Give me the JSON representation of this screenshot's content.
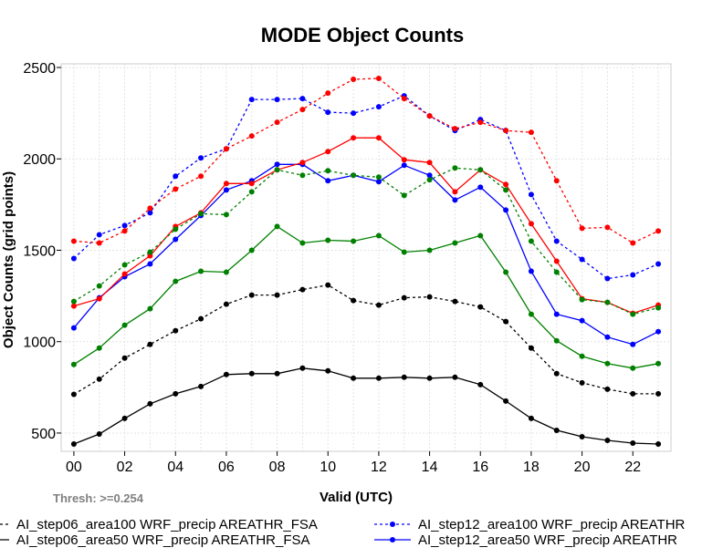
{
  "chart_data": {
    "type": "line",
    "title": "MODE Object Counts",
    "xlabel": "Valid (UTC)",
    "ylabel": "Object Counts (grid points)",
    "note": "Thresh: >=0.254",
    "x": [
      0,
      1,
      2,
      3,
      4,
      5,
      6,
      7,
      8,
      9,
      10,
      11,
      12,
      13,
      14,
      15,
      16,
      17,
      18,
      19,
      20,
      21,
      22,
      23
    ],
    "xticks": [
      0,
      2,
      4,
      6,
      8,
      10,
      12,
      14,
      16,
      18,
      20,
      22
    ],
    "xtick_labels": [
      "00",
      "02",
      "04",
      "06",
      "08",
      "10",
      "12",
      "14",
      "16",
      "18",
      "20",
      "22"
    ],
    "yticks": [
      500,
      1000,
      1500,
      2000,
      2500
    ],
    "xlim": [
      -0.5,
      23.5
    ],
    "ylim": [
      400,
      2520
    ],
    "grid": true,
    "series": [
      {
        "name": "AI_step06_area100 WRF_precip AREATHR_FSA",
        "color": "#000000",
        "dash": "3,3",
        "values": [
          712,
          795,
          910,
          985,
          1060,
          1125,
          1205,
          1255,
          1255,
          1285,
          1310,
          1225,
          1200,
          1240,
          1245,
          1220,
          1190,
          1110,
          965,
          825,
          775,
          740,
          715,
          715
        ]
      },
      {
        "name": "AI_step06_area50 WRF_precip AREATHR_FSA",
        "color": "#000000",
        "dash": "",
        "values": [
          440,
          495,
          580,
          660,
          715,
          755,
          820,
          825,
          825,
          855,
          840,
          800,
          800,
          805,
          800,
          805,
          765,
          675,
          580,
          515,
          480,
          460,
          445,
          440
        ]
      },
      {
        "name": "AI_step12_area100 WRF_precip AREATHR_FSA",
        "color": "#0000ff",
        "dash": "3,3",
        "values": [
          1455,
          1585,
          1635,
          1705,
          1905,
          2005,
          2055,
          2325,
          2325,
          2330,
          2255,
          2250,
          2285,
          2345,
          2235,
          2155,
          2215,
          2155,
          1805,
          1550,
          1450,
          1345,
          1365,
          1425
        ]
      },
      {
        "name": "AI_step12_area50 WRF_precip AREATHR_FSA",
        "color": "#0000ff",
        "dash": "",
        "values": [
          1075,
          1240,
          1355,
          1425,
          1560,
          1690,
          1830,
          1880,
          1970,
          1970,
          1880,
          1910,
          1875,
          1965,
          1910,
          1775,
          1845,
          1720,
          1385,
          1150,
          1115,
          1025,
          985,
          1055
        ]
      },
      {
        "name": "red dashed series",
        "color": "#ff0000",
        "dash": "3,3",
        "values": [
          1550,
          1540,
          1605,
          1730,
          1835,
          1905,
          2055,
          2125,
          2200,
          2270,
          2360,
          2435,
          2440,
          2330,
          2235,
          2165,
          2200,
          2155,
          2145,
          1880,
          1620,
          1625,
          1540,
          1605
        ]
      },
      {
        "name": "red solid series",
        "color": "#ff0000",
        "dash": "",
        "values": [
          1195,
          1235,
          1370,
          1470,
          1630,
          1705,
          1865,
          1865,
          1940,
          1980,
          2040,
          2115,
          2115,
          1995,
          1980,
          1820,
          1940,
          1860,
          1645,
          1440,
          1235,
          1215,
          1155,
          1200
        ]
      },
      {
        "name": "green dashed series",
        "color": "#008000",
        "dash": "3,3",
        "values": [
          1220,
          1305,
          1420,
          1490,
          1615,
          1700,
          1695,
          1820,
          1940,
          1910,
          1935,
          1910,
          1900,
          1800,
          1885,
          1950,
          1940,
          1830,
          1550,
          1380,
          1230,
          1215,
          1150,
          1185
        ]
      },
      {
        "name": "green solid series",
        "color": "#008000",
        "dash": "",
        "values": [
          875,
          965,
          1090,
          1180,
          1330,
          1385,
          1380,
          1500,
          1630,
          1540,
          1555,
          1550,
          1580,
          1490,
          1500,
          1540,
          1580,
          1380,
          1150,
          1005,
          920,
          880,
          855,
          880
        ]
      }
    ],
    "legend": [
      {
        "label": "AI_step06_area100 WRF_precip AREATHR_FSA",
        "color": "#000000",
        "dash": "3,3"
      },
      {
        "label": "AI_step06_area50 WRF_precip AREATHR_FSA",
        "color": "#000000",
        "dash": ""
      },
      {
        "label": "AI_step12_area100 WRF_precip AREATHR",
        "color": "#0000ff",
        "dash": "3,3"
      },
      {
        "label": "AI_step12_area50 WRF_precip AREATHR",
        "color": "#0000ff",
        "dash": ""
      }
    ]
  }
}
